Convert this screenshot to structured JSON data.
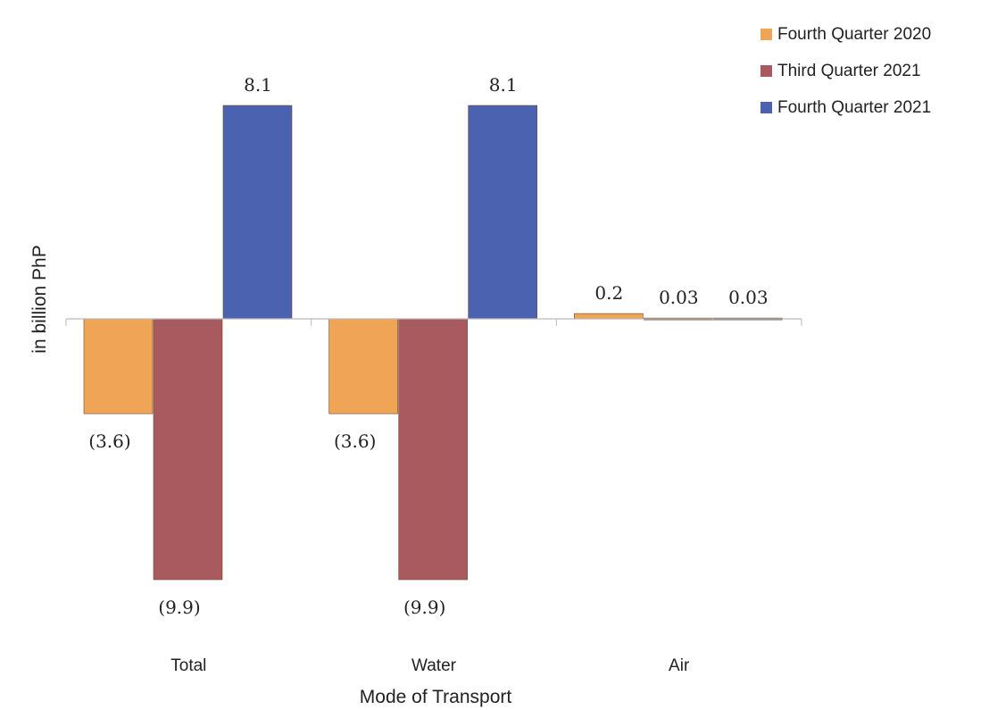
{
  "chart_data": {
    "type": "bar",
    "categories": [
      "Total",
      "Water",
      "Air"
    ],
    "series": [
      {
        "name": "Fourth Quarter 2020",
        "values": [
          -3.6,
          -3.6,
          0.2
        ],
        "labels": [
          "(3.6)",
          "(3.6)",
          "0.2"
        ],
        "color": "#f0a455"
      },
      {
        "name": "Third Quarter 2021",
        "values": [
          -9.9,
          -9.9,
          0.03
        ],
        "labels": [
          "(9.9)",
          "(9.9)",
          "0.03"
        ],
        "color": "#a85a5e"
      },
      {
        "name": "Fourth Quarter 2021",
        "values": [
          8.1,
          8.1,
          0.03
        ],
        "labels": [
          "8.1",
          "8.1",
          "0.03"
        ],
        "color": "#4a62b0"
      }
    ],
    "xlabel": "Mode of Transport",
    "ylabel": "in billion PhP",
    "ylim": [
      -9.9,
      8.1
    ],
    "grid": false,
    "legend": "top-right",
    "axis_color": "#bbbbbb"
  }
}
